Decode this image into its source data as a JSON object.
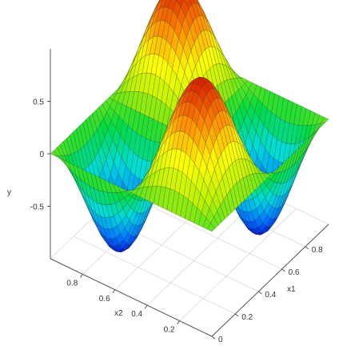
{
  "chart_data": {
    "type": "surface",
    "title": "",
    "function": "y = sin(2*pi*x1) * sin(2*pi*x2), plotted over x1 in [0,1], x2 in [0,1]",
    "x1": {
      "label": "x1",
      "range": [
        0,
        1
      ],
      "ticks": [
        "0",
        "0.2",
        "0.4",
        "0.6",
        "0.8"
      ],
      "tick_values": [
        0,
        0.2,
        0.4,
        0.6,
        0.8
      ]
    },
    "x2": {
      "label": "x2",
      "range": [
        0,
        1
      ],
      "ticks": [
        "0",
        "0.2",
        "0.4",
        "0.6",
        "0.8"
      ],
      "tick_values": [
        0,
        0.2,
        0.4,
        0.6,
        0.8
      ]
    },
    "y": {
      "label": "y",
      "range": [
        -1,
        1
      ],
      "ticks": [
        "0.5",
        "0",
        "-0.5"
      ],
      "tick_values": [
        0.5,
        0,
        -0.5
      ]
    },
    "colormap": [
      "#0000c8",
      "#0078ff",
      "#00dcdc",
      "#00dc3c",
      "#b4f000",
      "#ffff00",
      "#ff8c00",
      "#dc1e00"
    ],
    "grid": true,
    "resolution": 36
  }
}
